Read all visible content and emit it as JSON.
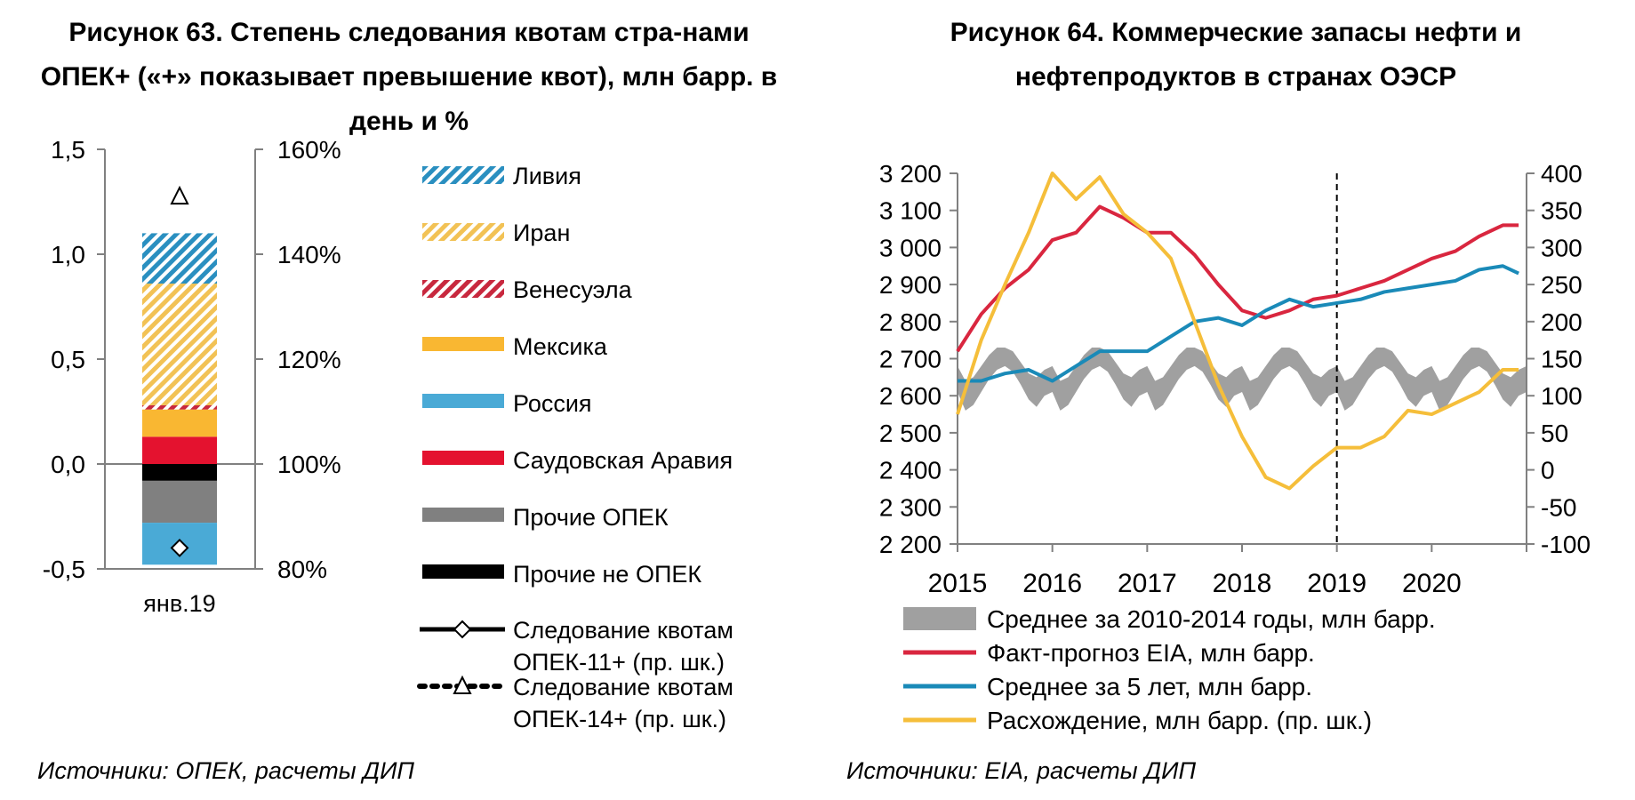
{
  "colors": {
    "libya": "#2a8fc0",
    "iran": "#f2c255",
    "venezuela": "#c8283e",
    "mexico": "#f9b732",
    "russia": "#4aaad6",
    "saudi": "#e4122f",
    "other_opec": "#808080",
    "other_non_opec": "#000000",
    "range_band": "#a0a0a0",
    "eia": "#d9263f",
    "avg5": "#1a8ab8",
    "divergence": "#f5be3a"
  },
  "figures": {
    "fig63": {
      "title": "Рисунок 63. Степень следования квотам стра-нами ОПЕК+ («+» показывает превышение квот), млн барр. в день и %",
      "source": "Источники: ОПЕК, расчеты ДИП"
    },
    "fig64": {
      "title": "Рисунок 64. Коммерческие запасы нефти и нефтепродуктов в странах ОЭСР",
      "source": "Источники: EIA, расчеты ДИП"
    }
  },
  "chart_data": [
    {
      "type": "bar",
      "stacked": true,
      "categories": [
        "янв.19"
      ],
      "ylim": [
        -0.5,
        1.5
      ],
      "y_ticks": [
        "1,5",
        "1,0",
        "0,5",
        "0,0",
        "-0,5"
      ],
      "y2lim": [
        80,
        160
      ],
      "y2_ticks": [
        "160%",
        "140%",
        "120%",
        "100%",
        "80%"
      ],
      "series": [
        {
          "name": "Ливия",
          "key": "libya",
          "values": [
            0.24
          ],
          "pattern": "hatch"
        },
        {
          "name": "Иран",
          "key": "iran",
          "values": [
            0.58
          ],
          "pattern": "hatch"
        },
        {
          "name": "Венесуэла",
          "key": "venezuela",
          "values": [
            0.02
          ],
          "pattern": "hatch"
        },
        {
          "name": "Мексика",
          "key": "mexico",
          "values": [
            0.13
          ],
          "pattern": "solid"
        },
        {
          "name": "Россия",
          "key": "russia",
          "values": [
            -0.2
          ],
          "pattern": "solid"
        },
        {
          "name": "Саудовская Аравия",
          "key": "saudi",
          "values": [
            0.13
          ],
          "pattern": "solid"
        },
        {
          "name": "Прочие ОПЕК",
          "key": "other_opec",
          "values": [
            -0.2
          ],
          "pattern": "solid"
        },
        {
          "name": "Прочие не ОПЕК",
          "key": "other_non_opec",
          "values": [
            -0.08
          ],
          "pattern": "solid"
        }
      ],
      "markers": [
        {
          "name": "Следование квотам ОПЕК-11+ (пр. шк.)",
          "legend_lines": [
            "Следование квотам",
            "ОПЕК-11+ (пр. шк.)"
          ],
          "shape": "diamond",
          "line": "solid",
          "values": [
            84
          ]
        },
        {
          "name": "Следование квотам ОПЕК-14+ (пр. шк.)",
          "legend_lines": [
            "Следование квотам",
            "ОПЕК-14+ (пр. шк.)"
          ],
          "shape": "triangle",
          "line": "dotted",
          "values": [
            151
          ]
        }
      ],
      "legend": "right"
    },
    {
      "type": "line",
      "x_range": [
        "2015-01",
        "2020-12"
      ],
      "x_ticks": [
        "2015",
        "2016",
        "2017",
        "2018",
        "2019",
        "2020"
      ],
      "ylim": [
        2200,
        3200
      ],
      "y_ticks": [
        "3 200",
        "3 100",
        "3 000",
        "2 900",
        "2 800",
        "2 700",
        "2 600",
        "2 500",
        "2 400",
        "2 300",
        "2 200"
      ],
      "y2lim": [
        -100,
        400
      ],
      "y2_ticks": [
        "400",
        "350",
        "300",
        "250",
        "200",
        "150",
        "100",
        "50",
        "0",
        "-50",
        "-100"
      ],
      "forecast_divider": "2019-01",
      "grid": false,
      "legend": "bottom",
      "range_band": {
        "name": "Среднее за 2010-2014 годы, млн барр.",
        "key": "range_band",
        "axis": "left",
        "low": [
          2610,
          2560,
          2575,
          2610,
          2645,
          2670,
          2680,
          2665,
          2630,
          2590,
          2570,
          2600
        ],
        "high": [
          2680,
          2640,
          2650,
          2680,
          2710,
          2730,
          2730,
          2720,
          2690,
          2660,
          2650,
          2670
        ]
      },
      "series": [
        {
          "name": "Факт-прогноз EIA, млн барр.",
          "key": "eia",
          "axis": "left",
          "x": [
            "2015-01",
            "2015-04",
            "2015-07",
            "2015-10",
            "2016-01",
            "2016-04",
            "2016-07",
            "2016-10",
            "2017-01",
            "2017-04",
            "2017-07",
            "2017-10",
            "2018-01",
            "2018-04",
            "2018-07",
            "2018-10",
            "2019-01",
            "2019-04",
            "2019-07",
            "2019-10",
            "2020-01",
            "2020-04",
            "2020-07",
            "2020-10",
            "2020-12"
          ],
          "values": [
            2720,
            2820,
            2890,
            2940,
            3020,
            3040,
            3110,
            3080,
            3040,
            3040,
            2980,
            2900,
            2830,
            2810,
            2830,
            2860,
            2870,
            2890,
            2910,
            2940,
            2970,
            2990,
            3030,
            3060,
            3060
          ]
        },
        {
          "name": "Среднее за 5 лет, млн барр.",
          "key": "avg5",
          "axis": "left",
          "x": [
            "2015-01",
            "2015-04",
            "2015-07",
            "2015-10",
            "2016-01",
            "2016-04",
            "2016-07",
            "2016-10",
            "2017-01",
            "2017-04",
            "2017-07",
            "2017-10",
            "2018-01",
            "2018-04",
            "2018-07",
            "2018-10",
            "2019-01",
            "2019-04",
            "2019-07",
            "2019-10",
            "2020-01",
            "2020-04",
            "2020-07",
            "2020-10",
            "2020-12"
          ],
          "values": [
            2640,
            2640,
            2660,
            2670,
            2640,
            2680,
            2720,
            2720,
            2720,
            2760,
            2800,
            2810,
            2790,
            2830,
            2860,
            2840,
            2850,
            2860,
            2880,
            2890,
            2900,
            2910,
            2940,
            2950,
            2930
          ]
        },
        {
          "name": "Расхождение, млн барр. (пр. шк.)",
          "key": "divergence",
          "axis": "right",
          "x": [
            "2015-01",
            "2015-04",
            "2015-07",
            "2015-10",
            "2016-01",
            "2016-04",
            "2016-07",
            "2016-10",
            "2017-01",
            "2017-04",
            "2017-07",
            "2017-10",
            "2018-01",
            "2018-04",
            "2018-07",
            "2018-10",
            "2019-01",
            "2019-04",
            "2019-07",
            "2019-10",
            "2020-01",
            "2020-04",
            "2020-07",
            "2020-10",
            "2020-12"
          ],
          "values": [
            75,
            175,
            250,
            320,
            400,
            365,
            395,
            345,
            320,
            285,
            200,
            115,
            45,
            -10,
            -25,
            5,
            30,
            30,
            45,
            80,
            75,
            90,
            105,
            135,
            135
          ]
        }
      ]
    }
  ]
}
